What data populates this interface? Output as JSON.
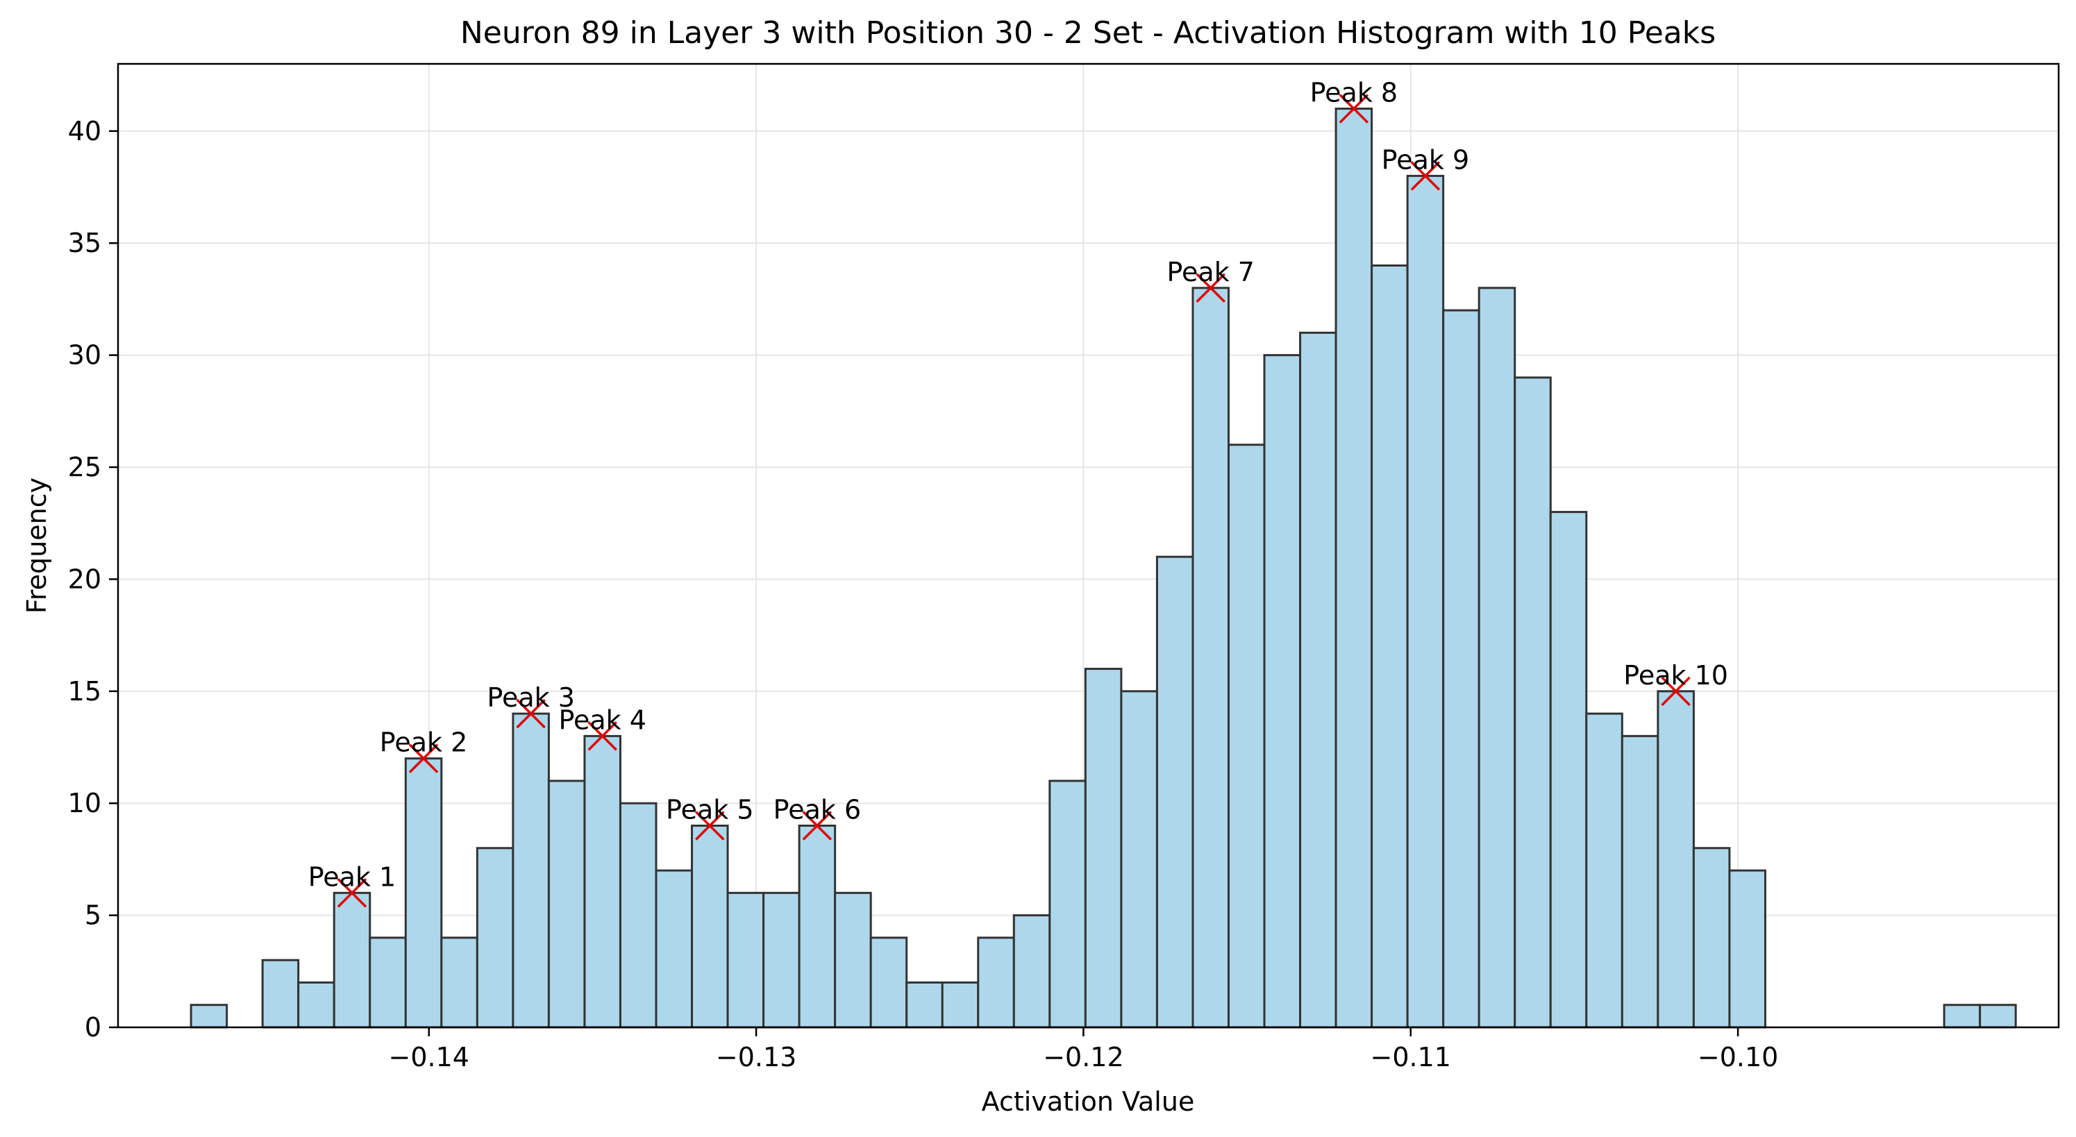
{
  "chart_data": {
    "type": "bar",
    "title": "Neuron 89 in Layer 3 with Position 30 - 2 Set - Activation Histogram with 10 Peaks",
    "xlabel": "Activation Value",
    "ylabel": "Frequency",
    "xlim": [
      -0.1495,
      -0.0902
    ],
    "ylim": [
      0,
      43
    ],
    "xticks": [
      -0.14,
      -0.13,
      -0.12,
      -0.11,
      -0.1
    ],
    "xtick_labels": [
      "−0.14",
      "−0.13",
      "−0.12",
      "−0.11",
      "−0.10"
    ],
    "yticks": [
      0,
      5,
      10,
      15,
      20,
      25,
      30,
      35,
      40
    ],
    "ytick_labels": [
      "0",
      "5",
      "10",
      "15",
      "20",
      "25",
      "30",
      "35",
      "40"
    ],
    "grid": true,
    "bin_start": -0.14727,
    "bin_width": 0.0010933,
    "values": [
      1,
      0,
      3,
      2,
      6,
      4,
      12,
      4,
      8,
      14,
      11,
      13,
      10,
      7,
      9,
      6,
      6,
      9,
      6,
      4,
      2,
      2,
      4,
      5,
      11,
      16,
      15,
      21,
      33,
      26,
      30,
      31,
      41,
      34,
      38,
      32,
      33,
      29,
      23,
      14,
      13,
      15,
      8,
      7,
      0,
      0,
      0,
      0,
      0,
      1,
      1
    ],
    "peaks": [
      {
        "label": "Peak 1",
        "bin": 4,
        "value": 6
      },
      {
        "label": "Peak 2",
        "bin": 6,
        "value": 12
      },
      {
        "label": "Peak 3",
        "bin": 9,
        "value": 14
      },
      {
        "label": "Peak 4",
        "bin": 11,
        "value": 13
      },
      {
        "label": "Peak 5",
        "bin": 14,
        "value": 9
      },
      {
        "label": "Peak 6",
        "bin": 17,
        "value": 9
      },
      {
        "label": "Peak 7",
        "bin": 28,
        "value": 33
      },
      {
        "label": "Peak 8",
        "bin": 32,
        "value": 41
      },
      {
        "label": "Peak 9",
        "bin": 34,
        "value": 38
      },
      {
        "label": "Peak 10",
        "bin": 41,
        "value": 15
      }
    ],
    "colors": {
      "bar_fill": "#add8ec",
      "bar_edge": "#333333",
      "peak_marker": "#e00000",
      "grid": "#e6e6e6"
    }
  }
}
